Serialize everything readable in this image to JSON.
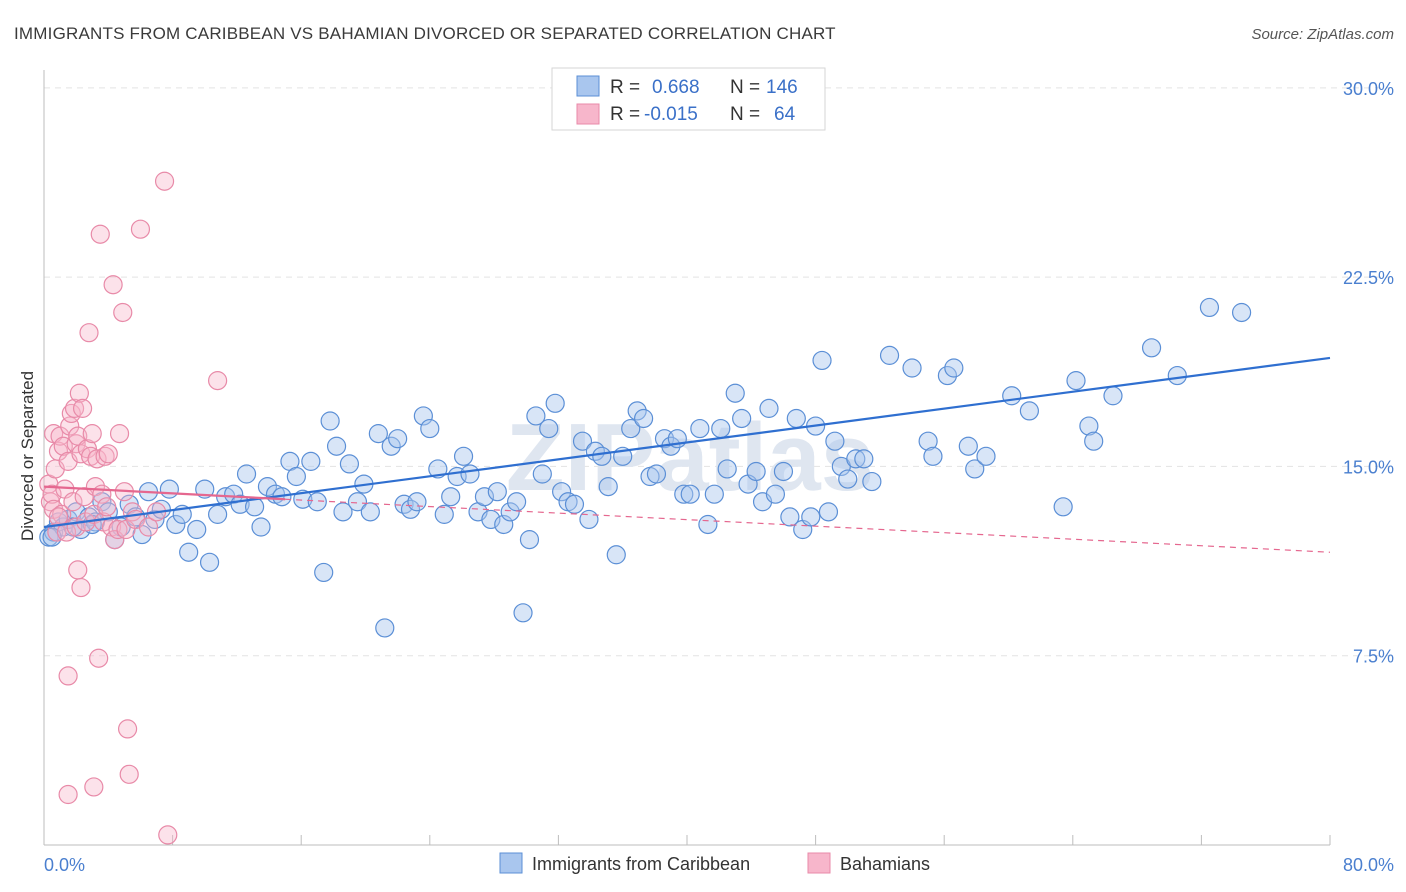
{
  "header": {
    "title": "IMMIGRANTS FROM CARIBBEAN VS BAHAMIAN DIVORCED OR SEPARATED CORRELATION CHART",
    "source": "Source: ZipAtlas.com"
  },
  "watermark": "ZIPatlas",
  "colors": {
    "blue_fill": "#a9c6ee",
    "blue_stroke": "#5b8fd6",
    "blue_line": "#2f6fd0",
    "pink_fill": "#f7b6cb",
    "pink_stroke": "#e88aa8",
    "pink_line": "#e5678f",
    "tick_text": "#4a7fcf"
  },
  "legend": {
    "rows": [
      {
        "r_label": "R =",
        "r_value": "0.668",
        "n_label": "N =",
        "n_value": "146",
        "color": "#a9c6ee"
      },
      {
        "r_label": "R =",
        "r_value": "-0.015",
        "n_label": "N =",
        "n_value": "64",
        "color": "#f7b6cb"
      }
    ]
  },
  "chart_data": {
    "type": "scatter",
    "title": "IMMIGRANTS FROM CARIBBEAN VS BAHAMIAN DIVORCED OR SEPARATED CORRELATION CHART",
    "xlabel": "",
    "ylabel": "Divorced or Separated",
    "xlim": [
      0,
      80
    ],
    "ylim": [
      0,
      31.5
    ],
    "x_tick_labels": [
      "0.0%",
      "80.0%"
    ],
    "y_ticks": [
      7.5,
      15.0,
      22.5,
      30.0
    ],
    "y_tick_labels": [
      "7.5%",
      "15.0%",
      "22.5%",
      "30.0%"
    ],
    "grid": true,
    "legend_position": "top-center",
    "series": [
      {
        "name": "Immigrants from Caribbean",
        "color": "#a9c6ee",
        "trend": {
          "x": [
            0,
            80
          ],
          "y": [
            12.6,
            19.3
          ],
          "style": "solid"
        },
        "points": [
          [
            0.3,
            12.2
          ],
          [
            0.6,
            12.4
          ],
          [
            0.9,
            12.8
          ],
          [
            1.2,
            12.6
          ],
          [
            1.5,
            12.9
          ],
          [
            2.0,
            13.2
          ],
          [
            2.3,
            12.5
          ],
          [
            2.8,
            13.0
          ],
          [
            3.2,
            12.8
          ],
          [
            3.6,
            13.6
          ],
          [
            4.0,
            13.2
          ],
          [
            4.4,
            12.1
          ],
          [
            4.8,
            12.6
          ],
          [
            5.3,
            13.5
          ],
          [
            5.7,
            13.0
          ],
          [
            6.1,
            12.3
          ],
          [
            6.5,
            14.0
          ],
          [
            6.9,
            12.9
          ],
          [
            7.3,
            13.3
          ],
          [
            7.8,
            14.1
          ],
          [
            8.2,
            12.7
          ],
          [
            8.6,
            13.1
          ],
          [
            9.0,
            11.6
          ],
          [
            9.5,
            12.5
          ],
          [
            10.0,
            14.1
          ],
          [
            10.3,
            11.2
          ],
          [
            10.8,
            13.1
          ],
          [
            11.3,
            13.8
          ],
          [
            11.8,
            13.9
          ],
          [
            12.2,
            13.5
          ],
          [
            12.6,
            14.7
          ],
          [
            13.1,
            13.4
          ],
          [
            13.5,
            12.6
          ],
          [
            13.9,
            14.2
          ],
          [
            14.4,
            13.9
          ],
          [
            14.8,
            13.8
          ],
          [
            15.3,
            15.2
          ],
          [
            15.7,
            14.6
          ],
          [
            16.1,
            13.7
          ],
          [
            16.6,
            15.2
          ],
          [
            17.0,
            13.6
          ],
          [
            17.4,
            10.8
          ],
          [
            17.8,
            16.8
          ],
          [
            18.2,
            15.8
          ],
          [
            18.6,
            13.2
          ],
          [
            19.0,
            15.1
          ],
          [
            19.5,
            13.6
          ],
          [
            19.9,
            14.3
          ],
          [
            20.3,
            13.2
          ],
          [
            20.8,
            16.3
          ],
          [
            21.2,
            8.6
          ],
          [
            21.6,
            15.8
          ],
          [
            22.0,
            16.1
          ],
          [
            22.4,
            13.5
          ],
          [
            22.8,
            13.3
          ],
          [
            23.2,
            13.6
          ],
          [
            23.6,
            17.0
          ],
          [
            24.0,
            16.5
          ],
          [
            24.5,
            14.9
          ],
          [
            24.9,
            13.1
          ],
          [
            25.3,
            13.8
          ],
          [
            25.7,
            14.6
          ],
          [
            26.1,
            15.4
          ],
          [
            26.5,
            14.7
          ],
          [
            27.0,
            13.2
          ],
          [
            27.4,
            13.8
          ],
          [
            27.8,
            12.9
          ],
          [
            28.2,
            14.0
          ],
          [
            28.6,
            12.7
          ],
          [
            29.0,
            13.2
          ],
          [
            29.4,
            13.6
          ],
          [
            29.8,
            9.2
          ],
          [
            30.2,
            12.1
          ],
          [
            30.6,
            17.0
          ],
          [
            31.0,
            14.7
          ],
          [
            31.4,
            16.5
          ],
          [
            31.8,
            17.5
          ],
          [
            32.2,
            14.0
          ],
          [
            32.6,
            13.6
          ],
          [
            33.0,
            13.5
          ],
          [
            33.5,
            16.0
          ],
          [
            33.9,
            12.9
          ],
          [
            34.3,
            15.6
          ],
          [
            34.7,
            15.4
          ],
          [
            35.1,
            14.2
          ],
          [
            35.6,
            11.5
          ],
          [
            36.0,
            15.4
          ],
          [
            36.5,
            16.5
          ],
          [
            36.9,
            17.2
          ],
          [
            37.3,
            16.9
          ],
          [
            37.7,
            14.6
          ],
          [
            38.1,
            14.7
          ],
          [
            38.6,
            16.1
          ],
          [
            39.0,
            15.8
          ],
          [
            39.4,
            16.1
          ],
          [
            39.8,
            13.9
          ],
          [
            40.2,
            13.9
          ],
          [
            40.8,
            16.5
          ],
          [
            41.3,
            12.7
          ],
          [
            41.7,
            13.9
          ],
          [
            42.1,
            16.5
          ],
          [
            42.5,
            14.9
          ],
          [
            43.0,
            17.9
          ],
          [
            43.4,
            16.9
          ],
          [
            43.8,
            14.3
          ],
          [
            44.3,
            14.8
          ],
          [
            44.7,
            13.6
          ],
          [
            45.1,
            17.3
          ],
          [
            45.5,
            13.9
          ],
          [
            46.0,
            14.8
          ],
          [
            46.4,
            13.0
          ],
          [
            46.8,
            16.9
          ],
          [
            47.2,
            12.5
          ],
          [
            47.7,
            13.0
          ],
          [
            48.0,
            16.6
          ],
          [
            48.4,
            19.2
          ],
          [
            48.8,
            13.2
          ],
          [
            49.2,
            16.0
          ],
          [
            49.6,
            15.0
          ],
          [
            50.0,
            14.5
          ],
          [
            50.5,
            15.3
          ],
          [
            51.0,
            15.3
          ],
          [
            51.5,
            14.4
          ],
          [
            52.6,
            19.4
          ],
          [
            54.0,
            18.9
          ],
          [
            55.0,
            16.0
          ],
          [
            55.3,
            15.4
          ],
          [
            56.2,
            18.6
          ],
          [
            56.6,
            18.9
          ],
          [
            57.5,
            15.8
          ],
          [
            57.9,
            14.9
          ],
          [
            58.6,
            15.4
          ],
          [
            60.2,
            17.8
          ],
          [
            61.3,
            17.2
          ],
          [
            63.4,
            13.4
          ],
          [
            64.2,
            18.4
          ],
          [
            65.0,
            16.6
          ],
          [
            65.3,
            16.0
          ],
          [
            66.5,
            17.8
          ],
          [
            68.9,
            19.7
          ],
          [
            70.5,
            18.6
          ],
          [
            72.5,
            21.3
          ],
          [
            74.5,
            21.1
          ],
          [
            0.5,
            12.2
          ],
          [
            1.8,
            12.6
          ],
          [
            3.0,
            12.7
          ]
        ]
      },
      {
        "name": "Bahamians",
        "color": "#f7b6cb",
        "trend_solid": {
          "x": [
            0,
            15
          ],
          "y": [
            14.2,
            13.7
          ]
        },
        "trend_dashed": {
          "x": [
            15,
            80
          ],
          "y": [
            13.7,
            11.6
          ]
        },
        "points": [
          [
            0.3,
            14.3
          ],
          [
            0.4,
            13.6
          ],
          [
            0.5,
            13.9
          ],
          [
            0.6,
            13.3
          ],
          [
            0.6,
            16.3
          ],
          [
            0.7,
            14.9
          ],
          [
            0.8,
            12.4
          ],
          [
            0.9,
            15.6
          ],
          [
            1.0,
            16.2
          ],
          [
            1.1,
            13.1
          ],
          [
            1.2,
            15.8
          ],
          [
            1.3,
            14.1
          ],
          [
            1.4,
            12.4
          ],
          [
            1.5,
            15.2
          ],
          [
            1.6,
            16.6
          ],
          [
            1.7,
            17.1
          ],
          [
            1.8,
            13.6
          ],
          [
            1.9,
            17.3
          ],
          [
            2.0,
            15.9
          ],
          [
            2.0,
            12.6
          ],
          [
            2.1,
            16.2
          ],
          [
            2.2,
            17.9
          ],
          [
            2.3,
            15.5
          ],
          [
            2.4,
            17.3
          ],
          [
            2.5,
            13.8
          ],
          [
            2.6,
            12.8
          ],
          [
            2.7,
            15.7
          ],
          [
            2.8,
            20.3
          ],
          [
            2.9,
            15.4
          ],
          [
            3.0,
            16.3
          ],
          [
            3.1,
            13.1
          ],
          [
            3.2,
            14.2
          ],
          [
            3.3,
            15.3
          ],
          [
            3.4,
            7.4
          ],
          [
            3.5,
            24.2
          ],
          [
            3.6,
            13.9
          ],
          [
            3.7,
            12.8
          ],
          [
            3.8,
            15.4
          ],
          [
            3.9,
            13.4
          ],
          [
            4.0,
            15.5
          ],
          [
            4.2,
            12.6
          ],
          [
            4.3,
            22.2
          ],
          [
            4.4,
            12.1
          ],
          [
            4.6,
            12.5
          ],
          [
            4.7,
            16.3
          ],
          [
            4.9,
            21.1
          ],
          [
            5.0,
            14.0
          ],
          [
            5.1,
            12.5
          ],
          [
            5.2,
            4.6
          ],
          [
            5.3,
            2.8
          ],
          [
            5.5,
            13.2
          ],
          [
            5.7,
            12.9
          ],
          [
            6.0,
            24.4
          ],
          [
            6.5,
            12.6
          ],
          [
            7.0,
            13.2
          ],
          [
            7.5,
            26.3
          ],
          [
            7.7,
            0.4
          ],
          [
            1.5,
            2.0
          ],
          [
            2.3,
            10.2
          ],
          [
            2.1,
            10.9
          ],
          [
            1.5,
            6.7
          ],
          [
            0.9,
            13.0
          ],
          [
            10.8,
            18.4
          ],
          [
            3.1,
            2.3
          ]
        ]
      }
    ]
  },
  "bottom_legend": {
    "items": [
      {
        "label": "Immigrants from Caribbean",
        "color": "#a9c6ee"
      },
      {
        "label": "Bahamians",
        "color": "#f7b6cb"
      }
    ]
  }
}
